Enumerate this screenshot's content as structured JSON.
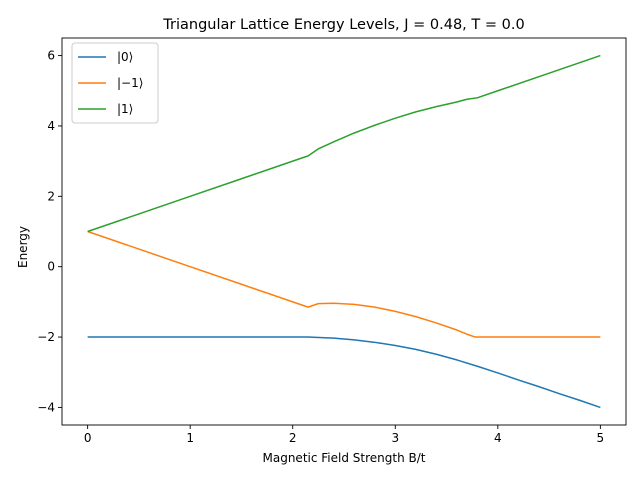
{
  "chart_data": {
    "type": "line",
    "title": "Triangular Lattice Energy Levels, J = 0.48, T = 0.0",
    "xlabel": "Magnetic Field Strength B/t",
    "ylabel": "Energy",
    "xlim": [
      -0.25,
      5.25
    ],
    "ylim": [
      -4.5,
      6.5
    ],
    "xticks": [
      0,
      1,
      2,
      3,
      4,
      5
    ],
    "yticks": [
      -4,
      -2,
      0,
      2,
      4,
      6
    ],
    "grid": false,
    "legend_position": "upper-left",
    "series": [
      {
        "name": "|0⟩",
        "color": "#1f77b4",
        "x": [
          0,
          0.5,
          1.0,
          1.5,
          2.0,
          2.15,
          2.2,
          2.4,
          2.6,
          2.8,
          3.0,
          3.2,
          3.4,
          3.6,
          3.8,
          4.0,
          4.2,
          4.4,
          4.6,
          4.8,
          5.0
        ],
        "y": [
          -2,
          -2,
          -2,
          -2,
          -2,
          -2,
          -2.005,
          -2.03,
          -2.08,
          -2.15,
          -2.24,
          -2.35,
          -2.49,
          -2.65,
          -2.83,
          -3.02,
          -3.22,
          -3.41,
          -3.61,
          -3.8,
          -4.0
        ]
      },
      {
        "name": "|−1⟩",
        "color": "#ff7f0e",
        "x": [
          0,
          0.5,
          1.0,
          1.5,
          2.0,
          2.15,
          2.2,
          2.25,
          2.4,
          2.6,
          2.8,
          3.0,
          3.2,
          3.4,
          3.6,
          3.7,
          3.78,
          3.8,
          4.0,
          4.5,
          5.0
        ],
        "y": [
          1,
          0.5,
          0,
          -0.5,
          -1.0,
          -1.15,
          -1.1,
          -1.05,
          -1.04,
          -1.07,
          -1.15,
          -1.27,
          -1.42,
          -1.6,
          -1.8,
          -1.92,
          -2.0,
          -2.0,
          -2.0,
          -2.0,
          -2.0
        ]
      },
      {
        "name": "|1⟩",
        "color": "#2ca02c",
        "x": [
          0,
          0.5,
          1.0,
          1.5,
          2.0,
          2.15,
          2.2,
          2.25,
          2.4,
          2.6,
          2.8,
          3.0,
          3.2,
          3.4,
          3.6,
          3.7,
          3.8,
          4.0,
          4.5,
          5.0
        ],
        "y": [
          1,
          1.5,
          2,
          2.5,
          3.0,
          3.15,
          3.25,
          3.35,
          3.55,
          3.8,
          4.02,
          4.22,
          4.4,
          4.55,
          4.68,
          4.76,
          4.8,
          5.0,
          5.5,
          6.0
        ]
      }
    ]
  }
}
